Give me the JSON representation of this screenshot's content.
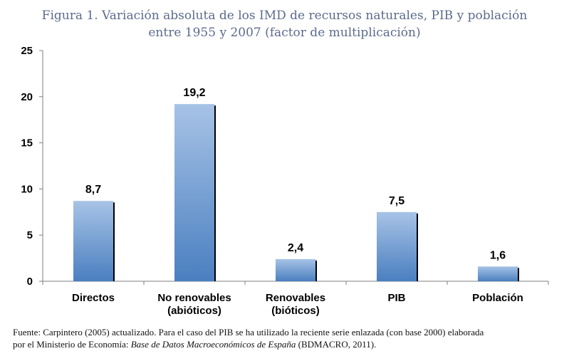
{
  "chart_data": {
    "type": "bar",
    "title_line1": "Figura 1. Variación absoluta de los IMD de recursos naturales, PIB y población",
    "title_line2": "entre 1955 y 2007 (factor de multiplicación)",
    "categories": [
      [
        "Directos"
      ],
      [
        "No renovables",
        "(abióticos)"
      ],
      [
        "Renovables",
        "(bióticos)"
      ],
      [
        "PIB"
      ],
      [
        "Población"
      ]
    ],
    "values": [
      8.7,
      19.2,
      2.4,
      7.5,
      1.6
    ],
    "value_labels": [
      "8,7",
      "19,2",
      "2,4",
      "7,5",
      "1,6"
    ],
    "yticks": [
      0,
      5,
      10,
      15,
      20,
      25
    ],
    "ylim": [
      0,
      25
    ],
    "grid": false,
    "legend": "none",
    "colors": {
      "bar_top": "#a7c3e6",
      "bar_bottom": "#4a7fc0",
      "shadow": "#000000",
      "axis": "#7f7f7f"
    }
  },
  "source": {
    "line1": "Fuente: Carpintero (2005) actualizado. Para el caso del PIB se ha utilizado la reciente serie enlazada (con base 2000) elaborada",
    "line2_prefix": "por el Ministerio de Economía: ",
    "line2_italic": "Base de Datos Macroeconómicos de España",
    "line2_suffix": " (BDMACRO, 2011)."
  }
}
